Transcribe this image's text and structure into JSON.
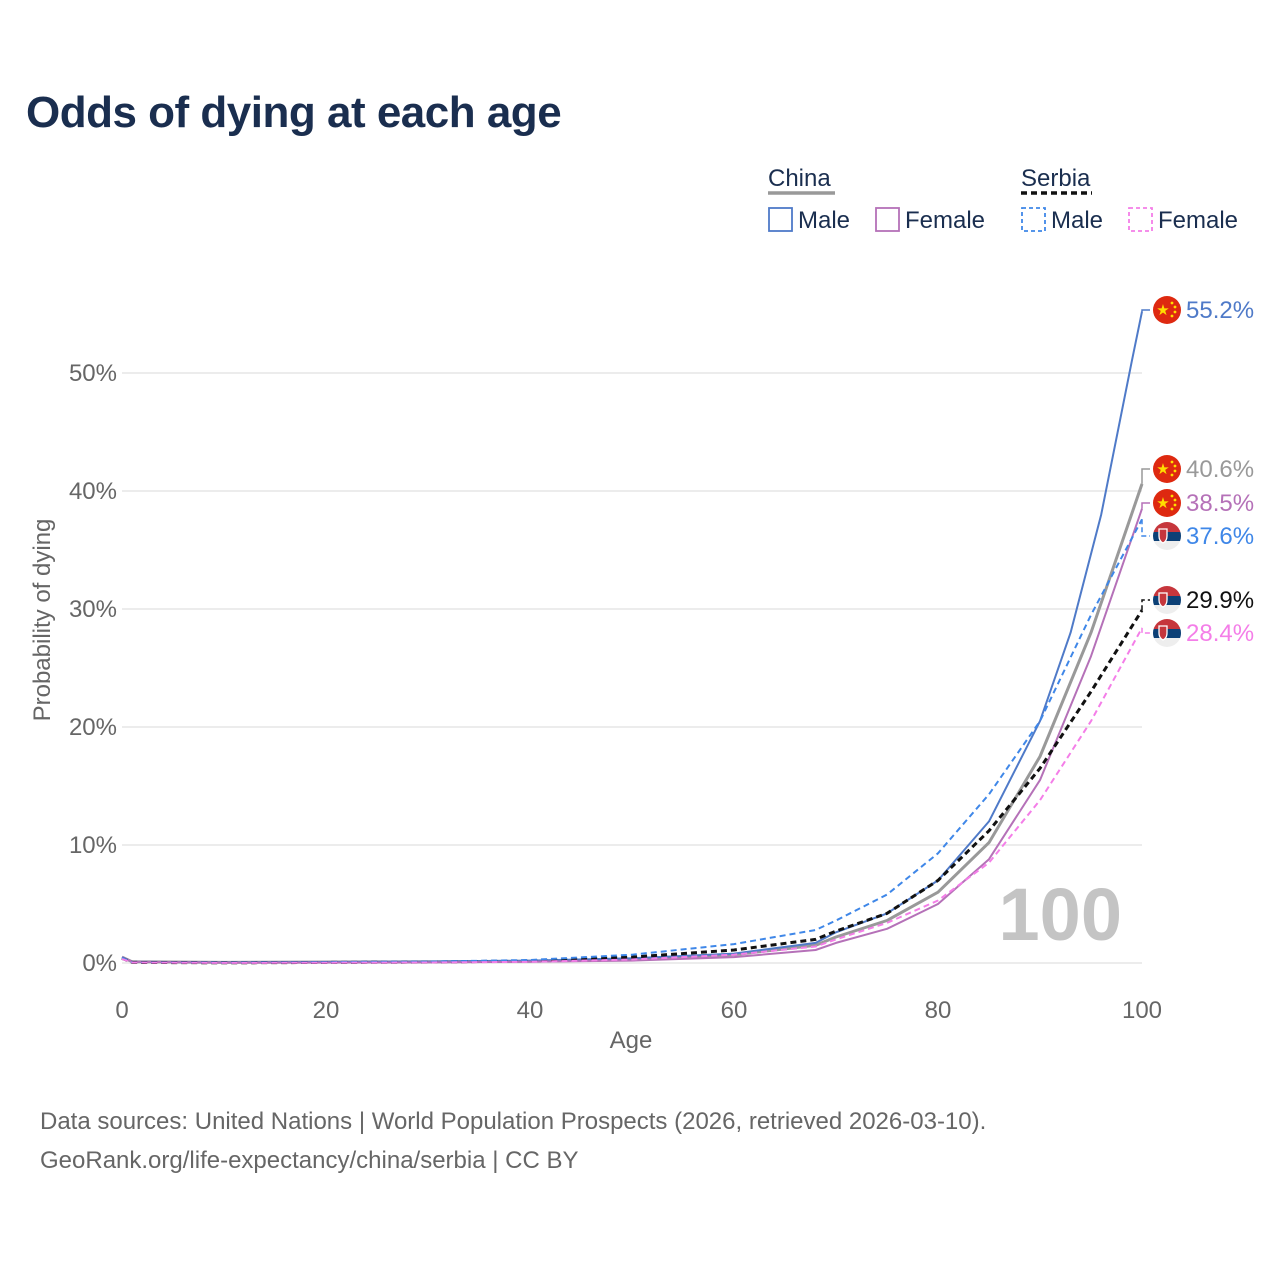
{
  "title": "Odds of dying at each age",
  "footer": {
    "line1": "Data sources: United Nations | World Population Prospects (2026, retrieved 2026-03-10).",
    "line2": "GeoRank.org/life-expectancy/china/serbia | CC BY"
  },
  "colors": {
    "china_total": "#999999",
    "china_male": "#4f7ac8",
    "china_female": "#b571b8",
    "serbia_total": "#111111",
    "serbia_male": "#3f87e8",
    "serbia_female": "#f47ee8",
    "axis_text": "#666666",
    "grid": "#e6e6e6",
    "watermark": "#c4c4c4"
  },
  "legend": {
    "groups": [
      {
        "name": "China",
        "total_series": "China Total",
        "items": [
          {
            "label": "Male",
            "series": "China Male"
          },
          {
            "label": "Female",
            "series": "China Female"
          }
        ]
      },
      {
        "name": "Serbia",
        "total_series": "Serbia Total",
        "items": [
          {
            "label": "Male",
            "series": "Serbia Male"
          },
          {
            "label": "Female",
            "series": "Serbia Female"
          }
        ]
      }
    ]
  },
  "chart_data": {
    "type": "line",
    "title": "Odds of dying at each age",
    "xlabel": "Age",
    "ylabel": "Probability of dying",
    "xlim": [
      0,
      100
    ],
    "ylim": [
      0,
      55.2
    ],
    "xticks": [
      0,
      20,
      40,
      60,
      80,
      100
    ],
    "yticks": [
      0,
      10,
      20,
      30,
      40,
      50
    ],
    "ytick_labels": [
      "0%",
      "10%",
      "20%",
      "30%",
      "40%",
      "50%"
    ],
    "annotation": "100",
    "series": [
      {
        "name": "China Total",
        "dash": false,
        "end_label": "40.6%",
        "flag": "china",
        "x": [
          0,
          1,
          10,
          30,
          40,
          50,
          60,
          68,
          70,
          75,
          80,
          85,
          90,
          95,
          100
        ],
        "y": [
          0.5,
          0.1,
          0.05,
          0.1,
          0.15,
          0.3,
          0.7,
          1.5,
          2.2,
          3.6,
          6.0,
          10.2,
          17.5,
          28.0,
          40.6
        ]
      },
      {
        "name": "China Male",
        "dash": false,
        "end_label": "55.2%",
        "flag": "china",
        "x": [
          0,
          1,
          10,
          30,
          40,
          50,
          60,
          68,
          70,
          75,
          80,
          85,
          90,
          93,
          96,
          99,
          100
        ],
        "y": [
          0.5,
          0.1,
          0.05,
          0.12,
          0.2,
          0.4,
          0.8,
          1.7,
          2.6,
          4.2,
          7.0,
          12.0,
          20.5,
          28.0,
          38.0,
          51.0,
          55.2
        ]
      },
      {
        "name": "China Female",
        "dash": false,
        "end_label": "38.5%",
        "flag": "china",
        "x": [
          0,
          1,
          10,
          30,
          40,
          50,
          60,
          68,
          70,
          75,
          80,
          85,
          90,
          95,
          100
        ],
        "y": [
          0.5,
          0.1,
          0.03,
          0.05,
          0.1,
          0.2,
          0.5,
          1.1,
          1.7,
          2.9,
          5.0,
          8.8,
          15.5,
          26.0,
          38.5
        ]
      },
      {
        "name": "Serbia Total",
        "dash": true,
        "end_label": "29.9%",
        "flag": "serbia",
        "x": [
          0,
          1,
          10,
          30,
          40,
          50,
          60,
          68,
          70,
          75,
          80,
          85,
          90,
          95,
          100
        ],
        "y": [
          0.4,
          0.05,
          0.02,
          0.08,
          0.18,
          0.5,
          1.1,
          2.0,
          2.7,
          4.2,
          7.0,
          11.2,
          16.5,
          23.0,
          29.9
        ]
      },
      {
        "name": "Serbia Male",
        "dash": true,
        "end_label": "37.6%",
        "flag": "serbia",
        "x": [
          0,
          1,
          10,
          30,
          40,
          50,
          60,
          68,
          70,
          75,
          80,
          85,
          90,
          95,
          100
        ],
        "y": [
          0.45,
          0.06,
          0.03,
          0.12,
          0.25,
          0.7,
          1.6,
          2.8,
          3.6,
          5.8,
          9.3,
          14.3,
          20.5,
          29.5,
          37.6
        ]
      },
      {
        "name": "Serbia Female",
        "dash": true,
        "end_label": "28.4%",
        "flag": "serbia",
        "x": [
          0,
          1,
          10,
          30,
          40,
          50,
          60,
          68,
          70,
          75,
          80,
          85,
          90,
          95,
          100
        ],
        "y": [
          0.35,
          0.04,
          0.01,
          0.04,
          0.1,
          0.3,
          0.7,
          1.4,
          2.0,
          3.4,
          5.3,
          8.5,
          13.8,
          20.5,
          28.4
        ]
      }
    ]
  }
}
